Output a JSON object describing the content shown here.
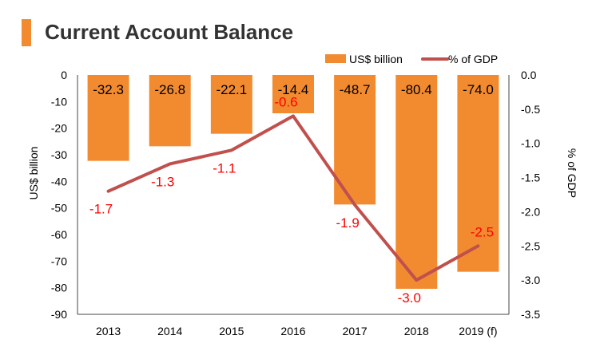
{
  "title": "Current Account Balance",
  "colors": {
    "accent": "#f28b30",
    "bar": "#f28b30",
    "line": "#c0504d",
    "line_label": "#ff0000",
    "bar_label": "#000000"
  },
  "chart_data": {
    "type": "bar",
    "categories": [
      "2013",
      "2014",
      "2015",
      "2016",
      "2017",
      "2018",
      "2019 (f)"
    ],
    "series": [
      {
        "name": "US$ billion",
        "type": "bar",
        "axis": "left",
        "values": [
          -32.3,
          -26.8,
          -22.1,
          -14.4,
          -48.7,
          -80.4,
          -74.0
        ],
        "labels": [
          "-32.3",
          "-26.8",
          "-22.1",
          "-14.4",
          "-48.7",
          "-80.4",
          "-74.0"
        ]
      },
      {
        "name": "% of GDP",
        "type": "line",
        "axis": "right",
        "values": [
          -1.7,
          -1.3,
          -1.1,
          -0.6,
          -1.9,
          -3.0,
          -2.5
        ],
        "labels": [
          "-1.7",
          "-1.3",
          "-1.1",
          "-0.6",
          "-1.9",
          "-3.0",
          "-2.5"
        ]
      }
    ],
    "ylabel": "US$ billion",
    "y2label": "% of GDP",
    "ylim": [
      -90,
      0
    ],
    "y2lim": [
      -3.5,
      0
    ],
    "yticks": [
      "0",
      "-10",
      "-20",
      "-30",
      "-40",
      "-50",
      "-60",
      "-70",
      "-80",
      "-90"
    ],
    "y2ticks": [
      "0.0",
      "-0.5",
      "-1.0",
      "-1.5",
      "-2.0",
      "-2.5",
      "-3.0",
      "-3.5"
    ],
    "grid": false,
    "legend": "top-right"
  }
}
